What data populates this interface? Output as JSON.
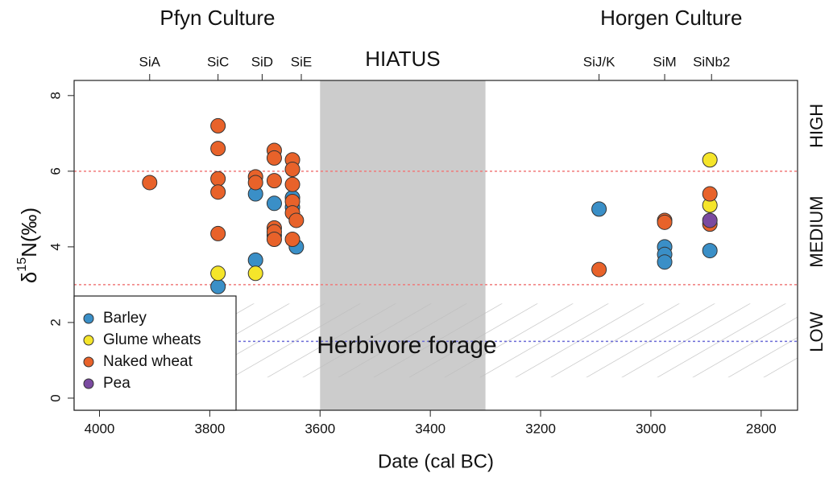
{
  "chart_data": {
    "type": "scatter",
    "x_label": "Date (cal BC)",
    "y_label": {
      "prefix": "δ",
      "sup": "15",
      "suffix": "N(‰)"
    },
    "xlim": [
      4046,
      2734
    ],
    "ylim": [
      -0.32,
      8.4
    ],
    "xticks": [
      4000,
      3800,
      3600,
      3400,
      3200,
      3000,
      2800
    ],
    "yticks": [
      0,
      2,
      4,
      6,
      8
    ],
    "legend": "bottom-left",
    "cultures": [
      {
        "label": "Pfyn Culture",
        "at": 3786
      },
      {
        "label": "Horgen Culture",
        "at": 2963
      }
    ],
    "sites": [
      {
        "label": "SiA",
        "date": 3909
      },
      {
        "label": "SiC",
        "date": 3785
      },
      {
        "label": "SiD",
        "date": 3705
      },
      {
        "label": "SiE",
        "date": 3634
      },
      {
        "label": "SiJ/K",
        "date": 3094
      },
      {
        "label": "SiM",
        "date": 2975
      },
      {
        "label": "SiNb2",
        "date": 2890
      }
    ],
    "hiatus": {
      "label": "HIATUS",
      "from": 3600,
      "to": 3300,
      "color": "#cccccc"
    },
    "reference_lines": [
      {
        "value": 6,
        "color": "#f07a7a"
      },
      {
        "value": 3,
        "color": "#f07a7a"
      },
      {
        "value": 1.5,
        "color": "#6b6bd6"
      }
    ],
    "forage": {
      "label": "Herbivore forage",
      "from": 0.55,
      "to": 2.5
    },
    "zones": [
      {
        "label": "HIGH",
        "at": 7.2
      },
      {
        "label": "MEDIUM",
        "at": 4.4
      },
      {
        "label": "LOW",
        "at": 1.75
      }
    ],
    "series": [
      {
        "name": "Barley",
        "color": "#3a8fc7",
        "x": [
          3785,
          3717,
          3717,
          3683,
          3683,
          3650,
          3650,
          3643,
          3094,
          2975,
          2975,
          2975,
          2893
        ],
        "values": [
          2.95,
          5.4,
          3.65,
          5.15,
          4.3,
          5.3,
          5.05,
          4.0,
          5.0,
          4.0,
          3.8,
          3.6,
          3.9
        ]
      },
      {
        "name": "Glume wheats",
        "color": "#f5e52a",
        "x": [
          3785,
          3717,
          2893,
          2893
        ],
        "values": [
          3.3,
          3.3,
          6.3,
          5.1
        ]
      },
      {
        "name": "Naked wheat",
        "color": "#e8622a",
        "x": [
          3909,
          3785,
          3785,
          3785,
          3785,
          3785,
          3717,
          3717,
          3683,
          3683,
          3683,
          3683,
          3683,
          3683,
          3650,
          3650,
          3650,
          3650,
          3650,
          3643,
          3650,
          3094,
          2975,
          2975,
          2893,
          2893
        ],
        "values": [
          5.7,
          7.2,
          6.6,
          5.8,
          5.45,
          4.35,
          5.85,
          5.7,
          6.55,
          6.35,
          5.75,
          4.5,
          4.4,
          4.2,
          6.3,
          6.05,
          5.65,
          5.2,
          4.9,
          4.7,
          4.2,
          3.4,
          4.7,
          4.65,
          5.4,
          4.6
        ]
      },
      {
        "name": "Pea",
        "color": "#7a4aa0",
        "x": [
          2893
        ],
        "values": [
          4.7
        ]
      }
    ]
  }
}
